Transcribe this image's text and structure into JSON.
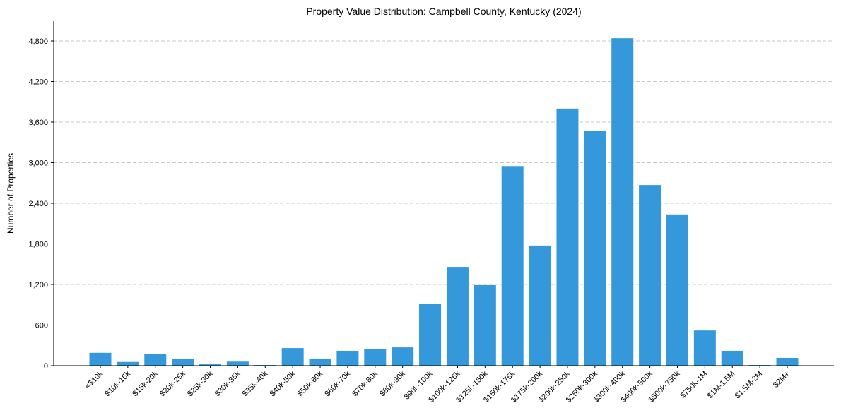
{
  "chart_data": {
    "type": "bar",
    "title": "Property Value Distribution: Campbell County, Kentucky (2024)",
    "xlabel": "",
    "ylabel": "Number of Properties",
    "ylim": [
      0,
      5090
    ],
    "yticks": [
      0,
      600,
      1200,
      1800,
      2400,
      3000,
      3600,
      4200,
      4800
    ],
    "ytick_labels": [
      "0",
      "600",
      "1,200",
      "1,800",
      "2,400",
      "3,000",
      "3,600",
      "4,200",
      "4,800"
    ],
    "grid": "y-dashed",
    "color": "#3498db",
    "categories": [
      "<$10k",
      "$10k-15k",
      "$15k-20k",
      "$20k-25k",
      "$25k-30k",
      "$30k-35k",
      "$35k-40k",
      "$40k-50k",
      "$50k-60k",
      "$60k-70k",
      "$70k-80k",
      "$80k-90k",
      "$90k-100k",
      "$100k-125k",
      "$125k-150k",
      "$150k-175k",
      "$175k-200k",
      "$200k-250k",
      "$250k-300k",
      "$300k-400k",
      "$400k-500k",
      "$500k-750k",
      "$750k-1M",
      "$1M-1.5M",
      "$1.5M-2M",
      "$2M+"
    ],
    "values": [
      190,
      55,
      175,
      95,
      20,
      60,
      10,
      260,
      105,
      220,
      250,
      270,
      910,
      1460,
      1190,
      2950,
      1775,
      3800,
      3475,
      4840,
      2670,
      2235,
      520,
      220,
      10,
      115
    ]
  }
}
